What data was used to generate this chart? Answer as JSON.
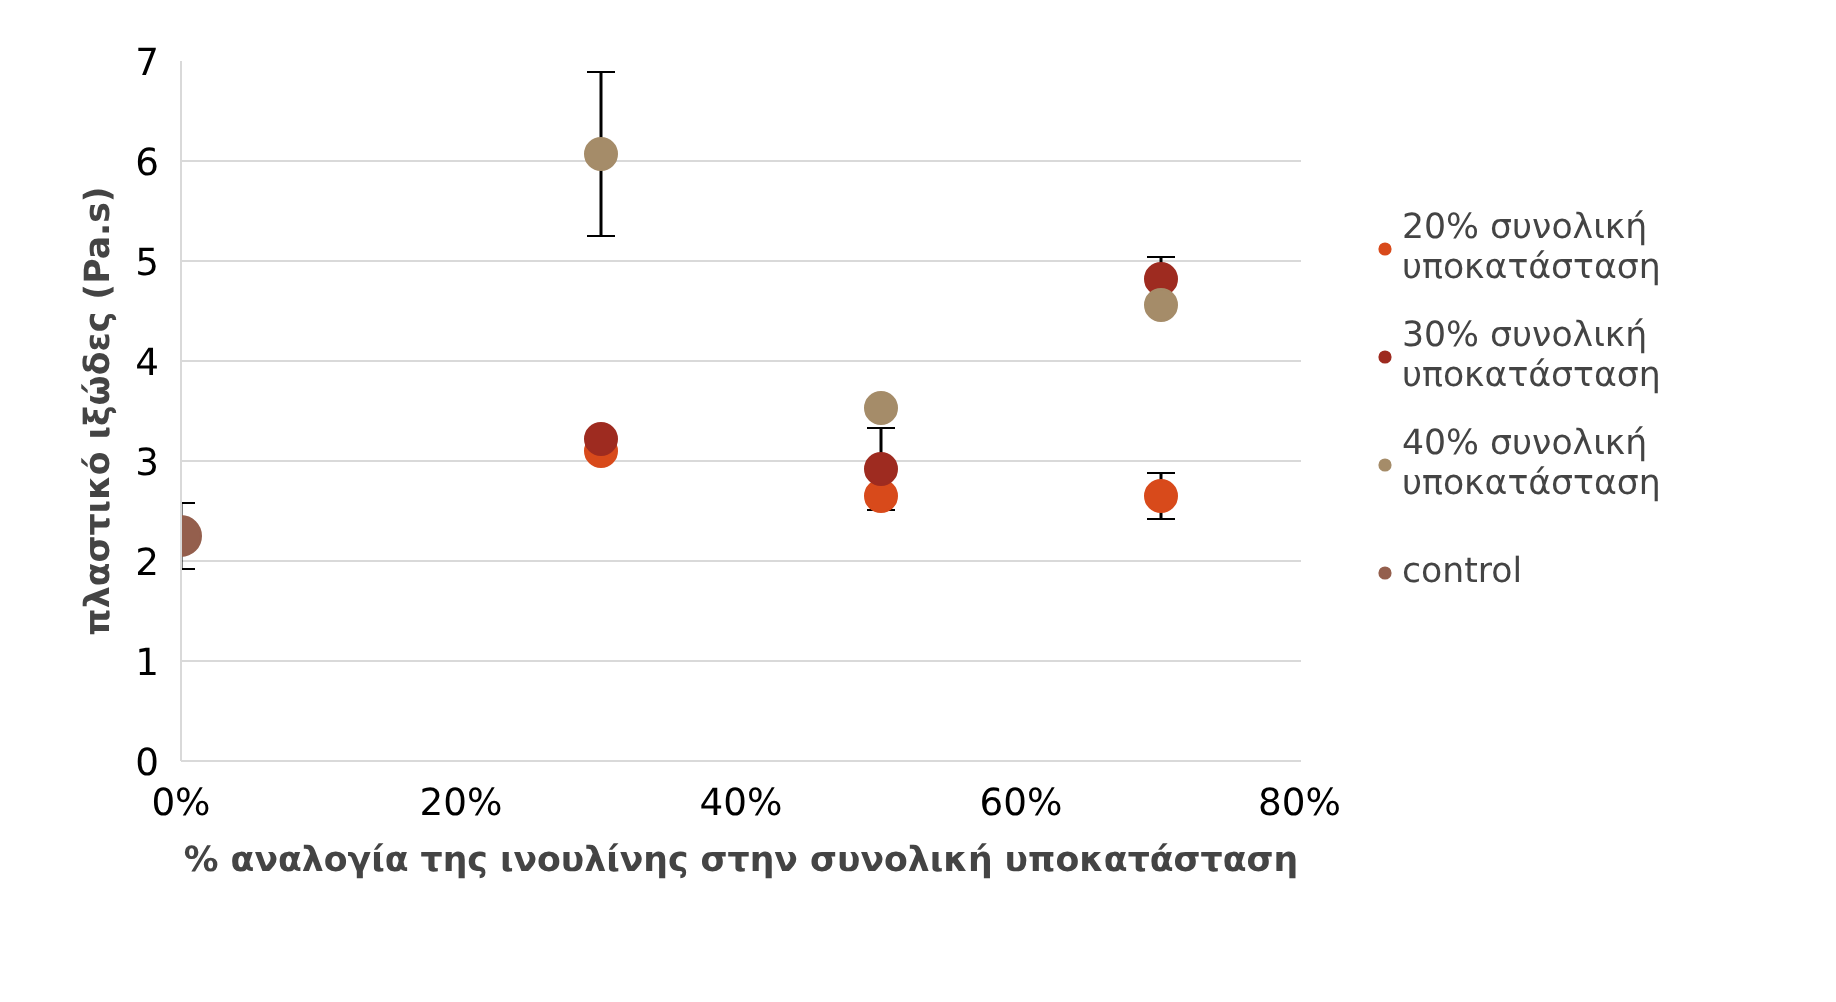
{
  "chart_data": {
    "type": "scatter",
    "xlabel": "% αναλογία της ινουλίνης στην συνολική υποκατάσταση",
    "ylabel": "πλαστικό ιξώδες (Pa.s)",
    "xlim": [
      0,
      0.8
    ],
    "xticks": [
      {
        "value": 0,
        "label": "0%"
      },
      {
        "value": 0.2,
        "label": "20%"
      },
      {
        "value": 0.4,
        "label": "40%"
      },
      {
        "value": 0.6,
        "label": "60%"
      },
      {
        "value": 0.8,
        "label": "80%"
      }
    ],
    "ylim": [
      0,
      7
    ],
    "yticks": [
      0,
      1,
      2,
      3,
      4,
      5,
      6,
      7
    ],
    "grid": "y",
    "legend": "right",
    "marker": "circle",
    "series": [
      {
        "name": "20% συνολική υποκατάσταση",
        "color": "#d84a1b",
        "x": [
          0.3,
          0.5,
          0.7
        ],
        "values": [
          3.1,
          2.65,
          2.65
        ],
        "errors": [
          null,
          null,
          0.23
        ]
      },
      {
        "name": "30% συνολική υποκατάσταση",
        "color": "#9e2b20",
        "x": [
          0.3,
          0.5,
          0.7
        ],
        "values": [
          3.22,
          2.92,
          4.82
        ],
        "errors": [
          null,
          0.41,
          0.22
        ]
      },
      {
        "name": "40% συνολική υποκατάσταση",
        "color": "#a58c69",
        "x": [
          0.3,
          0.5,
          0.7
        ],
        "values": [
          6.07,
          3.53,
          4.56
        ],
        "errors": [
          0.82,
          null,
          null
        ]
      },
      {
        "name": "control",
        "color": "#945f4d",
        "x": [
          0
        ],
        "values": [
          2.25
        ],
        "errors": [
          0.33
        ]
      }
    ]
  }
}
